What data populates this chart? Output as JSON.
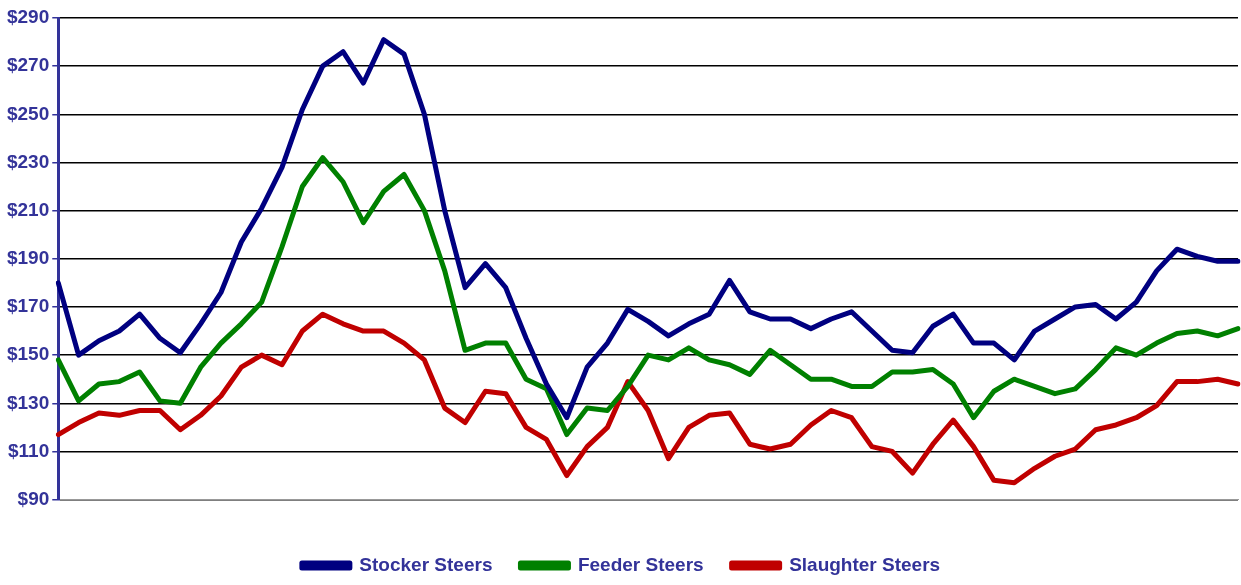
{
  "chart_data": {
    "type": "line",
    "categories": [
      null,
      null,
      null,
      null,
      null,
      null,
      null,
      null,
      null,
      null,
      null,
      null,
      null,
      null,
      null,
      null,
      null,
      null,
      null,
      null,
      null,
      null,
      null,
      null,
      null,
      null,
      null,
      null,
      null,
      null,
      null,
      null,
      null,
      null,
      null,
      null,
      null,
      null,
      null,
      null,
      null,
      null,
      null,
      null,
      null,
      null,
      null,
      null,
      null,
      null,
      null,
      null,
      null,
      null,
      null,
      null,
      null,
      null,
      null
    ],
    "ylim": [
      90,
      290
    ],
    "yticks": [
      {
        "value": 90,
        "label": "$90"
      },
      {
        "value": 110,
        "label": "$110"
      },
      {
        "value": 130,
        "label": "$130"
      },
      {
        "value": 150,
        "label": "$150"
      },
      {
        "value": 170,
        "label": "$170"
      },
      {
        "value": 190,
        "label": "$190"
      },
      {
        "value": 210,
        "label": "$210"
      },
      {
        "value": 230,
        "label": "$230"
      },
      {
        "value": 250,
        "label": "$250"
      },
      {
        "value": 270,
        "label": "$270"
      },
      {
        "value": 290,
        "label": "$290"
      }
    ],
    "grid": "y",
    "legend": "bottom",
    "marker": "none",
    "line_style": "solid",
    "series": [
      {
        "name": "Stocker Steers",
        "color": "#000080",
        "values": [
          180,
          150,
          156,
          160,
          167,
          157,
          151,
          163,
          176,
          197,
          211,
          228,
          252,
          270,
          276,
          263,
          281,
          275,
          250,
          210,
          178,
          188,
          178,
          157,
          138,
          124,
          145,
          155,
          169,
          164,
          158,
          163,
          167,
          181,
          168,
          165,
          165,
          161,
          165,
          168,
          160,
          152,
          151,
          162,
          167,
          155,
          155,
          148,
          160,
          165,
          170,
          171,
          165,
          172,
          185,
          194,
          191,
          189,
          189
        ]
      },
      {
        "name": "Feeder Steers",
        "color": "#008000",
        "values": [
          148,
          131,
          138,
          139,
          143,
          131,
          130,
          145,
          155,
          163,
          172,
          195,
          220,
          232,
          222,
          205,
          218,
          225,
          210,
          185,
          152,
          155,
          155,
          140,
          136,
          117,
          128,
          127,
          137,
          150,
          148,
          153,
          148,
          146,
          142,
          152,
          146,
          140,
          140,
          137,
          137,
          143,
          143,
          144,
          138,
          124,
          135,
          140,
          137,
          134,
          136,
          144,
          153,
          150,
          155,
          159,
          160,
          158,
          161
        ]
      },
      {
        "name": "Slaughter Steers",
        "color": "#c00000",
        "values": [
          117,
          122,
          126,
          125,
          127,
          127,
          119,
          125,
          133,
          145,
          150,
          146,
          160,
          167,
          163,
          160,
          160,
          155,
          148,
          128,
          122,
          135,
          134,
          120,
          115,
          100,
          112,
          120,
          139,
          127,
          107,
          120,
          125,
          126,
          113,
          111,
          113,
          121,
          127,
          124,
          112,
          110,
          101,
          113,
          123,
          112,
          98,
          97,
          103,
          108,
          111,
          119,
          121,
          124,
          129,
          139,
          139,
          140,
          138
        ]
      }
    ]
  }
}
